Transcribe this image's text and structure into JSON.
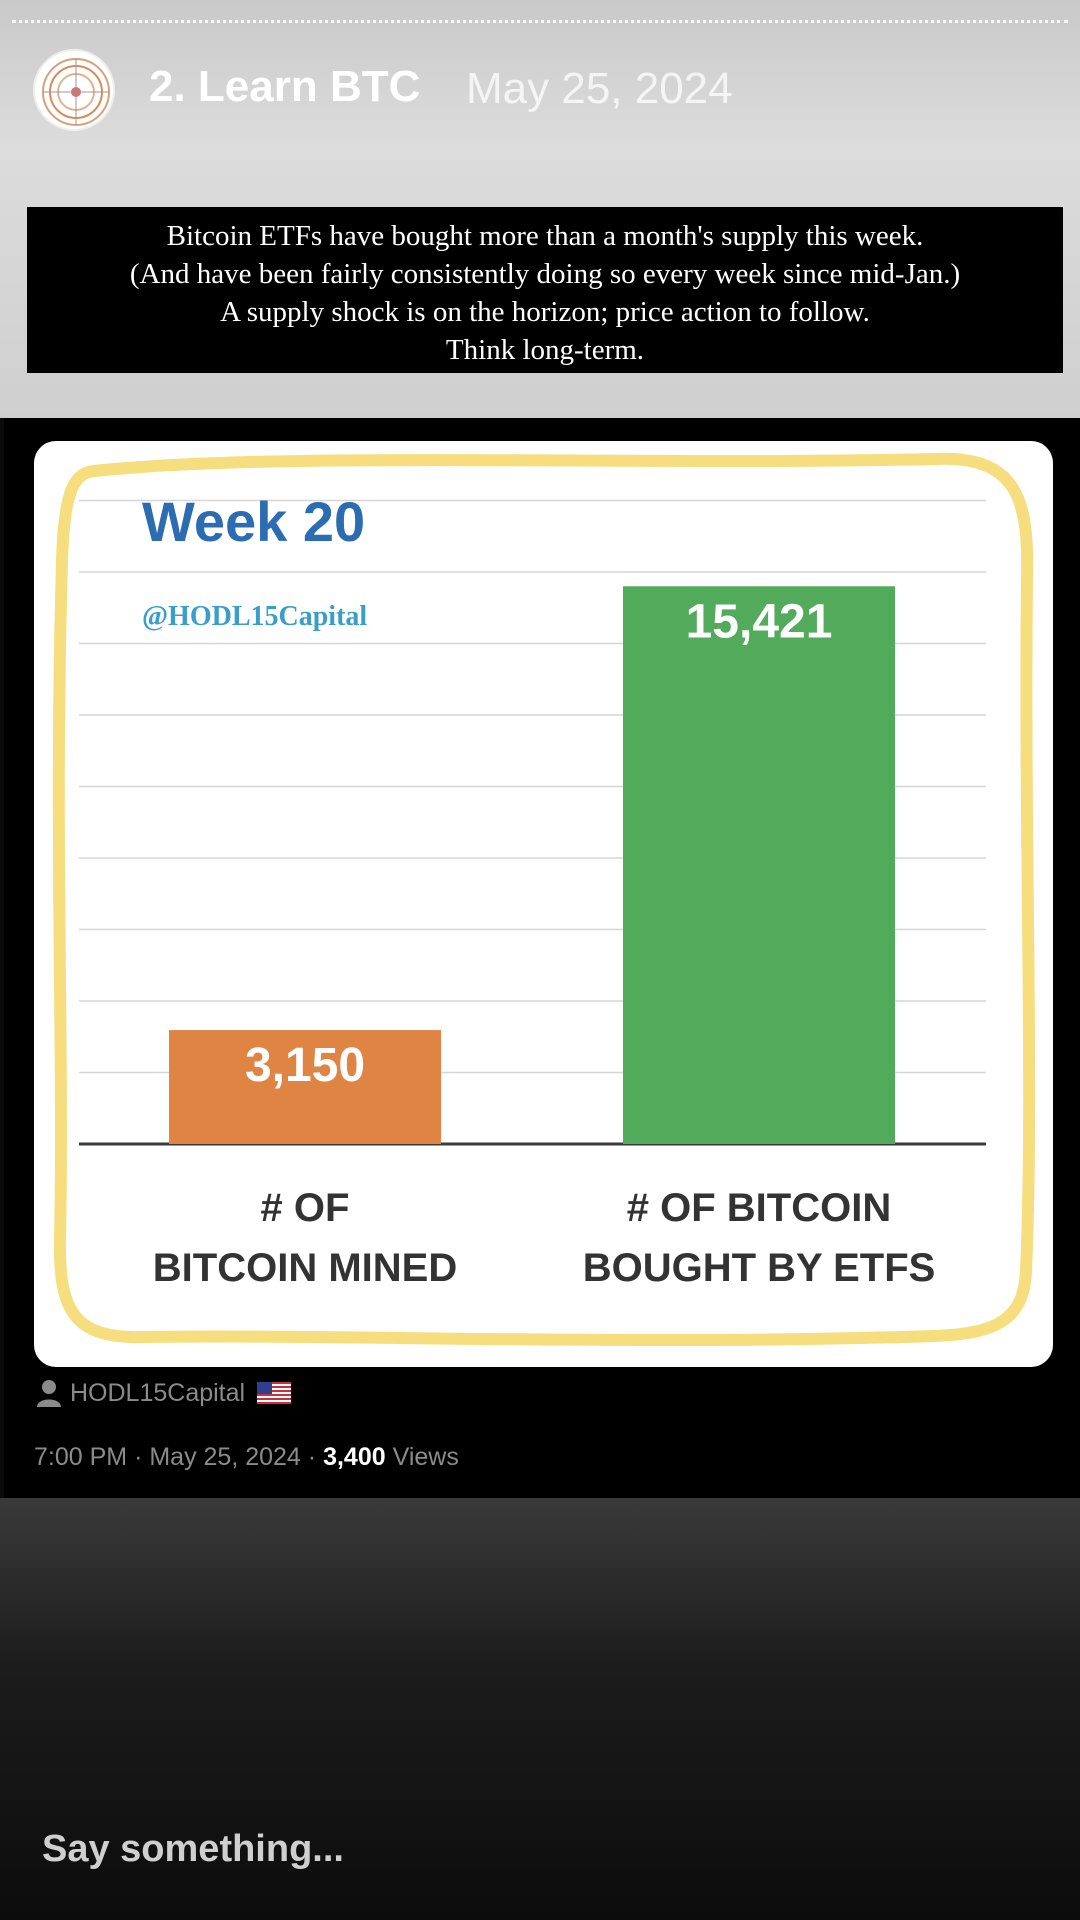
{
  "story": {
    "title": "2. Learn BTC",
    "date": "May 25, 2024",
    "caption_lines": [
      "Bitcoin ETFs have bought more than a month's supply this week.",
      "(And have been fairly consistently doing so every week since mid-Jan.)",
      "A supply shock is on the horizon; price action to follow.",
      "Think long-term."
    ]
  },
  "tweet": {
    "author": "HODL15Capital",
    "time": "7:00 PM",
    "date": "May 25, 2024",
    "views_count": "3,400",
    "views_label": "Views",
    "separator": "·"
  },
  "chart_data": {
    "type": "bar",
    "title": "Week 20",
    "subtitle": "@HODL15Capital",
    "categories": [
      "# OF BITCOIN MINED",
      "# OF BITCOIN BOUGHT BY ETFS"
    ],
    "category_lines": [
      [
        "# OF",
        "BITCOIN MINED"
      ],
      [
        "# OF BITCOIN",
        "BOUGHT BY ETFS"
      ]
    ],
    "values": [
      3150,
      15421
    ],
    "value_labels": [
      "3,150",
      "15,421"
    ],
    "colors": [
      "#e08444",
      "#52ab5b"
    ],
    "ylim": [
      0,
      18000
    ],
    "grid": true,
    "xlabel": "",
    "ylabel": ""
  },
  "footer": {
    "reply_placeholder": "Say something..."
  },
  "colors": {
    "frame": "#f6dd7d",
    "title": "#2c6cb0",
    "subtitle": "#3a9ec9"
  }
}
